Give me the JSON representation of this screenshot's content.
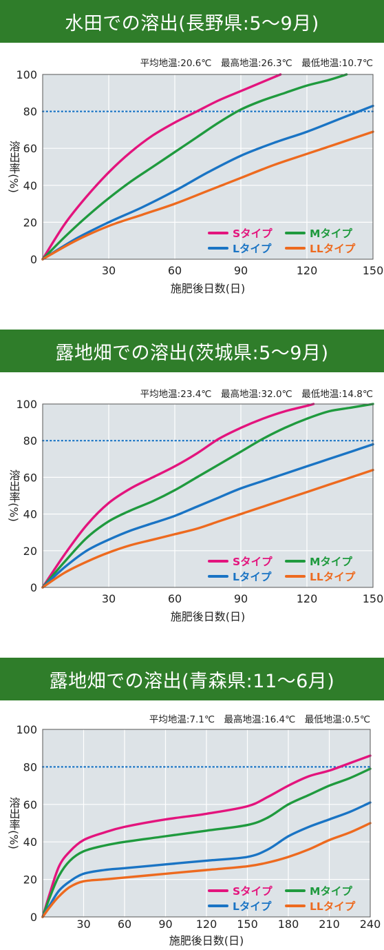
{
  "colors": {
    "banner": "#2f7d2a",
    "plot_bg": "#dde3e7",
    "S": "#e3147d",
    "M": "#1f9a3e",
    "L": "#1a74c4",
    "LL": "#ed6a1f",
    "ref_line": "#1a74c4"
  },
  "chart_data": [
    {
      "type": "line",
      "title": "水田での溶出(長野県:5〜9月)",
      "stats": "平均地温:20.6℃　最高地温:26.3℃　最低地温:10.7℃",
      "xlabel": "施肥後日数(日)",
      "ylabel": "溶出率(%)",
      "xlim": [
        0,
        150
      ],
      "ylim": [
        0,
        100
      ],
      "xticks": [
        30,
        60,
        90,
        120,
        150
      ],
      "yticks": [
        0,
        20,
        40,
        60,
        80,
        100
      ],
      "reference_line": 80,
      "grid": true,
      "legend": "bottom-right",
      "series": [
        {
          "name": "Sタイプ",
          "color_key": "S",
          "x": [
            0,
            10,
            20,
            30,
            40,
            50,
            60,
            70,
            80,
            90,
            100,
            108
          ],
          "y": [
            0,
            19,
            34,
            47,
            58,
            67,
            74,
            80,
            86,
            91,
            96,
            100
          ]
        },
        {
          "name": "Mタイプ",
          "color_key": "M",
          "x": [
            0,
            10,
            20,
            30,
            40,
            50,
            60,
            70,
            80,
            90,
            100,
            110,
            120,
            130,
            138
          ],
          "y": [
            0,
            12,
            23,
            33,
            42,
            50,
            58,
            66,
            74,
            81,
            86,
            90,
            94,
            97,
            100
          ]
        },
        {
          "name": "Lタイプ",
          "color_key": "L",
          "x": [
            0,
            15,
            30,
            45,
            60,
            75,
            90,
            105,
            120,
            135,
            150
          ],
          "y": [
            0,
            11,
            20,
            28,
            37,
            47,
            56,
            63,
            69,
            76,
            83
          ]
        },
        {
          "name": "LLタイプ",
          "color_key": "LL",
          "x": [
            0,
            15,
            30,
            45,
            60,
            75,
            90,
            105,
            120,
            135,
            150
          ],
          "y": [
            0,
            10,
            18,
            24,
            30,
            37,
            44,
            51,
            57,
            63,
            69
          ]
        }
      ]
    },
    {
      "type": "line",
      "title": "露地畑での溶出(茨城県:5〜9月)",
      "stats": "平均地温:23.4℃　最高地温:32.0℃　最低地温:14.8℃",
      "xlabel": "施肥後日数(日)",
      "ylabel": "溶出率(%)",
      "xlim": [
        0,
        150
      ],
      "ylim": [
        0,
        100
      ],
      "xticks": [
        30,
        60,
        90,
        120,
        150
      ],
      "yticks": [
        0,
        20,
        40,
        60,
        80,
        100
      ],
      "reference_line": 80,
      "grid": true,
      "legend": "bottom-right",
      "series": [
        {
          "name": "Sタイプ",
          "color_key": "S",
          "x": [
            0,
            10,
            20,
            30,
            40,
            50,
            60,
            70,
            80,
            90,
            100,
            110,
            120,
            123
          ],
          "y": [
            0,
            18,
            34,
            46,
            54,
            60,
            66,
            73,
            81,
            87,
            92,
            96,
            99,
            100
          ]
        },
        {
          "name": "Mタイプ",
          "color_key": "M",
          "x": [
            0,
            10,
            20,
            30,
            40,
            50,
            60,
            70,
            80,
            90,
            100,
            110,
            120,
            130,
            140,
            150
          ],
          "y": [
            0,
            14,
            27,
            36,
            42,
            47,
            53,
            60,
            67,
            74,
            81,
            87,
            92,
            96,
            98,
            100
          ]
        },
        {
          "name": "Lタイプ",
          "color_key": "L",
          "x": [
            0,
            10,
            20,
            30,
            40,
            50,
            60,
            70,
            80,
            90,
            100,
            110,
            120,
            130,
            140,
            150
          ],
          "y": [
            0,
            11,
            20,
            26,
            31,
            35,
            39,
            44,
            49,
            54,
            58,
            62,
            66,
            70,
            74,
            78
          ]
        },
        {
          "name": "LLタイプ",
          "color_key": "LL",
          "x": [
            0,
            10,
            20,
            30,
            40,
            50,
            60,
            70,
            80,
            90,
            100,
            110,
            120,
            130,
            140,
            150
          ],
          "y": [
            0,
            8,
            14,
            19,
            23,
            26,
            29,
            32,
            36,
            40,
            44,
            48,
            52,
            56,
            60,
            64
          ]
        }
      ]
    },
    {
      "type": "line",
      "title": "露地畑での溶出(青森県:11〜6月)",
      "stats": "平均地温:7.1℃　最高地温:16.4℃　最低地温:0.5℃",
      "xlabel": "施肥後日数(日)",
      "ylabel": "溶出率(%)",
      "xlim": [
        0,
        240
      ],
      "ylim": [
        0,
        100
      ],
      "xticks": [
        30,
        60,
        90,
        120,
        150,
        180,
        210,
        240
      ],
      "yticks": [
        0,
        20,
        40,
        60,
        80,
        100
      ],
      "reference_line": 80,
      "grid": true,
      "legend": "bottom-right",
      "series": [
        {
          "name": "Sタイプ",
          "color_key": "S",
          "x": [
            0,
            5,
            12,
            20,
            30,
            45,
            60,
            90,
            120,
            150,
            165,
            180,
            195,
            210,
            225,
            240
          ],
          "y": [
            0,
            12,
            27,
            35,
            41,
            45,
            48,
            52,
            55,
            59,
            64,
            70,
            75,
            78,
            82,
            86
          ]
        },
        {
          "name": "Mタイプ",
          "color_key": "M",
          "x": [
            0,
            5,
            12,
            20,
            30,
            45,
            60,
            90,
            120,
            150,
            165,
            180,
            195,
            210,
            225,
            240
          ],
          "y": [
            0,
            10,
            22,
            30,
            35,
            38,
            40,
            43,
            46,
            49,
            53,
            60,
            65,
            70,
            74,
            79
          ]
        },
        {
          "name": "Lタイプ",
          "color_key": "L",
          "x": [
            0,
            5,
            12,
            20,
            30,
            45,
            60,
            90,
            120,
            150,
            165,
            180,
            195,
            210,
            225,
            240
          ],
          "y": [
            0,
            6,
            14,
            19,
            23,
            25,
            26,
            28,
            30,
            32,
            36,
            43,
            48,
            52,
            56,
            61
          ]
        },
        {
          "name": "LLタイプ",
          "color_key": "LL",
          "x": [
            0,
            5,
            12,
            20,
            30,
            45,
            60,
            90,
            120,
            150,
            165,
            180,
            195,
            210,
            225,
            240
          ],
          "y": [
            0,
            5,
            11,
            16,
            19,
            20,
            21,
            23,
            25,
            27,
            29,
            32,
            36,
            41,
            45,
            50
          ]
        }
      ]
    }
  ]
}
